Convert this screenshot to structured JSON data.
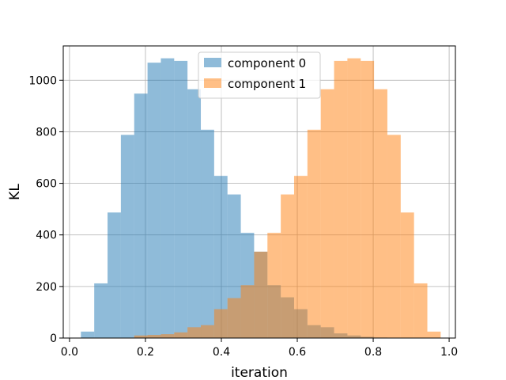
{
  "chart_data": {
    "type": "bar",
    "histogram": true,
    "xlabel": "iteration",
    "ylabel": "KL",
    "xlim": [
      -0.0165,
      1.0165
    ],
    "ylim": [
      0,
      1133
    ],
    "xticks": [
      0.0,
      0.2,
      0.4,
      0.6,
      0.8,
      1.0
    ],
    "xtick_labels": [
      "0.0",
      "0.2",
      "0.4",
      "0.6",
      "0.8",
      "1.0"
    ],
    "yticks": [
      0,
      200,
      400,
      600,
      800,
      1000
    ],
    "ytick_labels": [
      "0",
      "200",
      "400",
      "600",
      "800",
      "1000"
    ],
    "grid": true,
    "legend_position": "upper center",
    "bin_start": 0.03,
    "bin_width": 0.0351,
    "series": [
      {
        "name": "component 0",
        "color": "#1f77b4",
        "alpha": 0.5,
        "values": [
          25,
          212,
          487,
          788,
          948,
          1068,
          1085,
          1075,
          965,
          808,
          629,
          557,
          408,
          335,
          205,
          158,
          112,
          50,
          42,
          18,
          10,
          5,
          2,
          0,
          0,
          0,
          0
        ]
      },
      {
        "name": "component 1",
        "color": "#ff7f0e",
        "alpha": 0.5,
        "values": [
          0,
          0,
          0,
          0,
          10,
          12,
          15,
          22,
          42,
          50,
          112,
          155,
          205,
          335,
          408,
          557,
          629,
          808,
          965,
          1075,
          1085,
          1075,
          965,
          788,
          487,
          212,
          25
        ]
      }
    ]
  }
}
